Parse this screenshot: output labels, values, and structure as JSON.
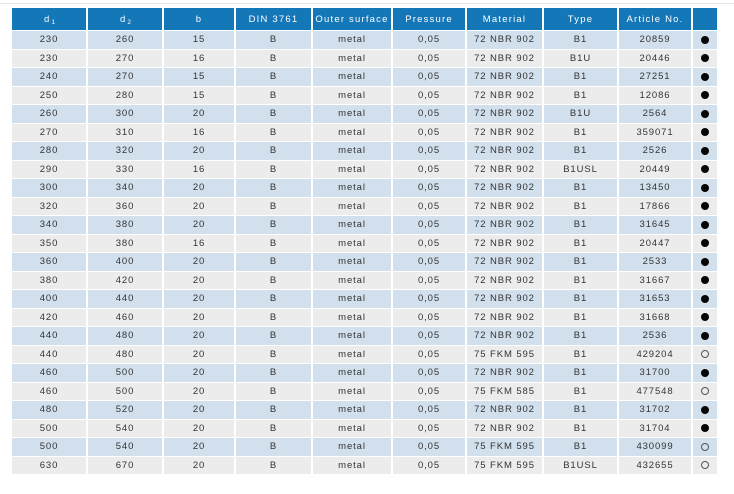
{
  "table": {
    "columns": [
      {
        "label": "d",
        "sub": "1"
      },
      {
        "label": "d",
        "sub": "2"
      },
      {
        "label": "b",
        "sub": ""
      },
      {
        "label": "DIN 3761",
        "sub": ""
      },
      {
        "label": "Outer surface",
        "sub": ""
      },
      {
        "label": "Pressure",
        "sub": ""
      },
      {
        "label": "Material",
        "sub": ""
      },
      {
        "label": "Type",
        "sub": ""
      },
      {
        "label": "Article No.",
        "sub": ""
      },
      {
        "label": "",
        "sub": ""
      }
    ],
    "legend": {
      "filled_dot": "available (filled circle)",
      "open_dot": "open circle"
    },
    "rows": [
      {
        "d1": "230",
        "d2": "260",
        "b": "15",
        "din": "B",
        "surface": "metal",
        "pressure": "0,05",
        "material": "72 NBR 902",
        "type": "B1",
        "article": "20859",
        "dot": "filled"
      },
      {
        "d1": "230",
        "d2": "270",
        "b": "16",
        "din": "B",
        "surface": "metal",
        "pressure": "0,05",
        "material": "72 NBR 902",
        "type": "B1U",
        "article": "20446",
        "dot": "filled"
      },
      {
        "d1": "240",
        "d2": "270",
        "b": "15",
        "din": "B",
        "surface": "metal",
        "pressure": "0,05",
        "material": "72 NBR 902",
        "type": "B1",
        "article": "27251",
        "dot": "filled"
      },
      {
        "d1": "250",
        "d2": "280",
        "b": "15",
        "din": "B",
        "surface": "metal",
        "pressure": "0,05",
        "material": "72 NBR 902",
        "type": "B1",
        "article": "12086",
        "dot": "filled"
      },
      {
        "d1": "260",
        "d2": "300",
        "b": "20",
        "din": "B",
        "surface": "metal",
        "pressure": "0,05",
        "material": "72 NBR 902",
        "type": "B1U",
        "article": "2564",
        "dot": "filled"
      },
      {
        "d1": "270",
        "d2": "310",
        "b": "16",
        "din": "B",
        "surface": "metal",
        "pressure": "0,05",
        "material": "72 NBR 902",
        "type": "B1",
        "article": "359071",
        "dot": "filled"
      },
      {
        "d1": "280",
        "d2": "320",
        "b": "20",
        "din": "B",
        "surface": "metal",
        "pressure": "0,05",
        "material": "72 NBR 902",
        "type": "B1",
        "article": "2526",
        "dot": "filled"
      },
      {
        "d1": "290",
        "d2": "330",
        "b": "16",
        "din": "B",
        "surface": "metal",
        "pressure": "0,05",
        "material": "72 NBR 902",
        "type": "B1USL",
        "article": "20449",
        "dot": "filled"
      },
      {
        "d1": "300",
        "d2": "340",
        "b": "20",
        "din": "B",
        "surface": "metal",
        "pressure": "0,05",
        "material": "72 NBR 902",
        "type": "B1",
        "article": "13450",
        "dot": "filled"
      },
      {
        "d1": "320",
        "d2": "360",
        "b": "20",
        "din": "B",
        "surface": "metal",
        "pressure": "0,05",
        "material": "72 NBR 902",
        "type": "B1",
        "article": "17866",
        "dot": "filled"
      },
      {
        "d1": "340",
        "d2": "380",
        "b": "20",
        "din": "B",
        "surface": "metal",
        "pressure": "0,05",
        "material": "72 NBR 902",
        "type": "B1",
        "article": "31645",
        "dot": "filled"
      },
      {
        "d1": "350",
        "d2": "380",
        "b": "16",
        "din": "B",
        "surface": "metal",
        "pressure": "0,05",
        "material": "72 NBR 902",
        "type": "B1",
        "article": "20447",
        "dot": "filled"
      },
      {
        "d1": "360",
        "d2": "400",
        "b": "20",
        "din": "B",
        "surface": "metal",
        "pressure": "0,05",
        "material": "72 NBR 902",
        "type": "B1",
        "article": "2533",
        "dot": "filled"
      },
      {
        "d1": "380",
        "d2": "420",
        "b": "20",
        "din": "B",
        "surface": "metal",
        "pressure": "0,05",
        "material": "72 NBR 902",
        "type": "B1",
        "article": "31667",
        "dot": "filled"
      },
      {
        "d1": "400",
        "d2": "440",
        "b": "20",
        "din": "B",
        "surface": "metal",
        "pressure": "0,05",
        "material": "72 NBR 902",
        "type": "B1",
        "article": "31653",
        "dot": "filled"
      },
      {
        "d1": "420",
        "d2": "460",
        "b": "20",
        "din": "B",
        "surface": "metal",
        "pressure": "0,05",
        "material": "72 NBR 902",
        "type": "B1",
        "article": "31668",
        "dot": "filled"
      },
      {
        "d1": "440",
        "d2": "480",
        "b": "20",
        "din": "B",
        "surface": "metal",
        "pressure": "0,05",
        "material": "72 NBR 902",
        "type": "B1",
        "article": "2536",
        "dot": "filled"
      },
      {
        "d1": "440",
        "d2": "480",
        "b": "20",
        "din": "B",
        "surface": "metal",
        "pressure": "0,05",
        "material": "75 FKM 595",
        "type": "B1",
        "article": "429204",
        "dot": "open"
      },
      {
        "d1": "460",
        "d2": "500",
        "b": "20",
        "din": "B",
        "surface": "metal",
        "pressure": "0,05",
        "material": "72 NBR 902",
        "type": "B1",
        "article": "31700",
        "dot": "filled"
      },
      {
        "d1": "460",
        "d2": "500",
        "b": "20",
        "din": "B",
        "surface": "metal",
        "pressure": "0,05",
        "material": "75 FKM 585",
        "type": "B1",
        "article": "477548",
        "dot": "open"
      },
      {
        "d1": "480",
        "d2": "520",
        "b": "20",
        "din": "B",
        "surface": "metal",
        "pressure": "0,05",
        "material": "72 NBR 902",
        "type": "B1",
        "article": "31702",
        "dot": "filled"
      },
      {
        "d1": "500",
        "d2": "540",
        "b": "20",
        "din": "B",
        "surface": "metal",
        "pressure": "0,05",
        "material": "72 NBR 902",
        "type": "B1",
        "article": "31704",
        "dot": "filled"
      },
      {
        "d1": "500",
        "d2": "540",
        "b": "20",
        "din": "B",
        "surface": "metal",
        "pressure": "0,05",
        "material": "75 FKM 595",
        "type": "B1",
        "article": "430099",
        "dot": "open"
      },
      {
        "d1": "630",
        "d2": "670",
        "b": "20",
        "din": "B",
        "surface": "metal",
        "pressure": "0,05",
        "material": "75 FKM 595",
        "type": "B1USL",
        "article": "432655",
        "dot": "open"
      }
    ]
  },
  "colors": {
    "header_bg": "#1377b8",
    "header_text": "#ffffff",
    "row_stripe_blue": "#d2e0ee",
    "row_stripe_gray": "#ececec",
    "body_text": "#333333",
    "dot_fill": "#050505"
  }
}
